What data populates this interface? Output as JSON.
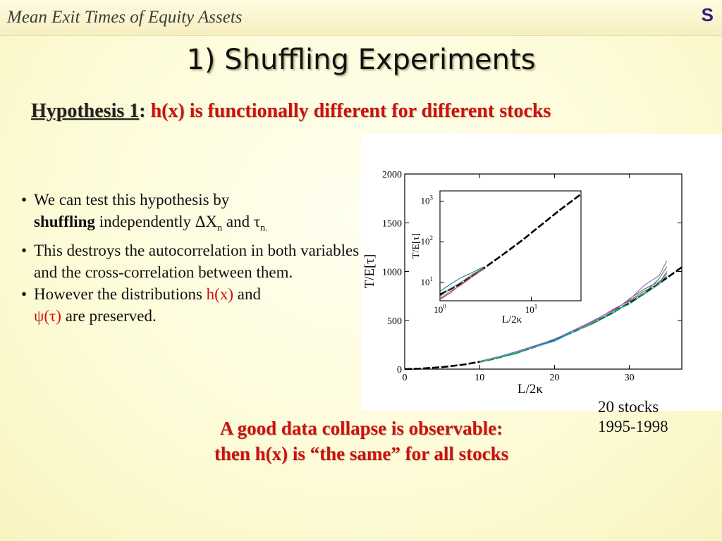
{
  "header": {
    "title": "Mean Exit Times of Equity Assets",
    "logo": "S"
  },
  "slide_title": "1) Shuffling Experiments",
  "hypothesis": {
    "label": "Hypothesis 1",
    "colon": ":",
    "text": " h(x) is functionally different for different stocks"
  },
  "bullets": {
    "b1_part1": "We can test this hypothesis by",
    "b1_bold": "shuffling",
    "b1_part2": " independently ΔX",
    "b1_sub1": "n",
    "b1_part3": " and τ",
    "b1_sub2": "n.",
    "b2": "This destroys the autocorrelation in both variables and the cross-correlation between them.",
    "b3_part1": "However the distributions ",
    "b3_red1": "h(x)",
    "b3_part2": " and ",
    "b3_red2": "ψ(τ)",
    "b3_part3": " are preserved."
  },
  "caption": {
    "line1": "20 stocks",
    "line2": "1995-1998"
  },
  "conclusion": {
    "line1": "A good data collapse is observable:",
    "line2": "then h(x) is “the same” for all stocks"
  },
  "colors": {
    "accent_red": "#cc1111",
    "series": [
      "#000000",
      "#d62728",
      "#2ca02c",
      "#1f77b4",
      "#9467bd",
      "#17becf",
      "#8c564b",
      "#7f7f7f",
      "#bcbd22"
    ]
  },
  "chart_data": [
    {
      "type": "line",
      "title": "",
      "xlabel": "L/2κ",
      "ylabel": "T/E[τ]",
      "xlim": [
        0,
        37
      ],
      "ylim": [
        0,
        2000
      ],
      "xticks": [
        0,
        10,
        20,
        30
      ],
      "yticks": [
        0,
        500,
        1000,
        1500,
        2000
      ],
      "legend": "none",
      "grid": false,
      "series": [
        {
          "values_x": [
            0,
            2,
            5,
            8,
            10,
            12,
            15,
            18,
            20,
            22,
            25,
            28,
            30,
            32,
            35,
            37
          ],
          "values_y": [
            0,
            5,
            20,
            48,
            75,
            108,
            170,
            245,
            300,
            365,
            470,
            590,
            680,
            775,
            935,
            1045
          ]
        },
        {
          "values_x": [
            10,
            15,
            20,
            25,
            28,
            30,
            32,
            34,
            35
          ],
          "values_y": [
            80,
            175,
            290,
            480,
            620,
            700,
            800,
            880,
            1000
          ]
        },
        {
          "values_x": [
            10,
            15,
            20,
            25,
            28,
            30,
            32,
            34,
            35
          ],
          "values_y": [
            70,
            160,
            310,
            460,
            580,
            690,
            780,
            930,
            1050
          ]
        },
        {
          "values_x": [
            10,
            15,
            20,
            25,
            28,
            30,
            32,
            34,
            35
          ],
          "values_y": [
            78,
            168,
            295,
            470,
            600,
            720,
            820,
            900,
            950
          ]
        },
        {
          "values_x": [
            10,
            15,
            20,
            25,
            28,
            30,
            32,
            34,
            35
          ],
          "values_y": [
            72,
            182,
            305,
            490,
            610,
            710,
            860,
            960,
            1110
          ]
        },
        {
          "values_x": [
            10,
            15,
            20,
            25,
            28,
            30,
            32,
            34,
            35
          ],
          "values_y": [
            76,
            172,
            285,
            475,
            595,
            665,
            770,
            870,
            980
          ]
        }
      ]
    },
    {
      "type": "line",
      "title": "",
      "xlabel": "L/2κ",
      "ylabel": "T/E[τ]",
      "xscale": "log",
      "yscale": "log",
      "xlim": [
        1,
        35
      ],
      "ylim": [
        3.5,
        1800
      ],
      "xtick_labels": [
        "10",
        "10"
      ],
      "xtick_exponents": [
        "0",
        "1"
      ],
      "ytick_labels": [
        "10",
        "10",
        "10"
      ],
      "ytick_exponents": [
        "1",
        "2",
        "3"
      ],
      "series": [
        {
          "values_x": [
            1,
            1.5,
            2,
            3,
            5,
            8,
            12,
            20,
            30,
            35
          ],
          "values_y": [
            5,
            8,
            12,
            22,
            50,
            110,
            230,
            580,
            1150,
            1500
          ]
        },
        {
          "values_x": [
            1,
            1.3,
            1.7,
            2.2,
            3
          ],
          "values_y": [
            3.8,
            5.5,
            9,
            14,
            22
          ]
        },
        {
          "values_x": [
            1,
            1.3,
            1.7,
            2.2,
            3
          ],
          "values_y": [
            4.5,
            7,
            10,
            15,
            23
          ]
        },
        {
          "values_x": [
            1,
            1.3,
            1.7,
            2.2,
            3
          ],
          "values_y": [
            6,
            9,
            13,
            17,
            24
          ]
        },
        {
          "values_x": [
            1,
            1.3,
            1.7,
            2.2,
            3
          ],
          "values_y": [
            4,
            6,
            8.5,
            13,
            21
          ]
        }
      ]
    }
  ]
}
